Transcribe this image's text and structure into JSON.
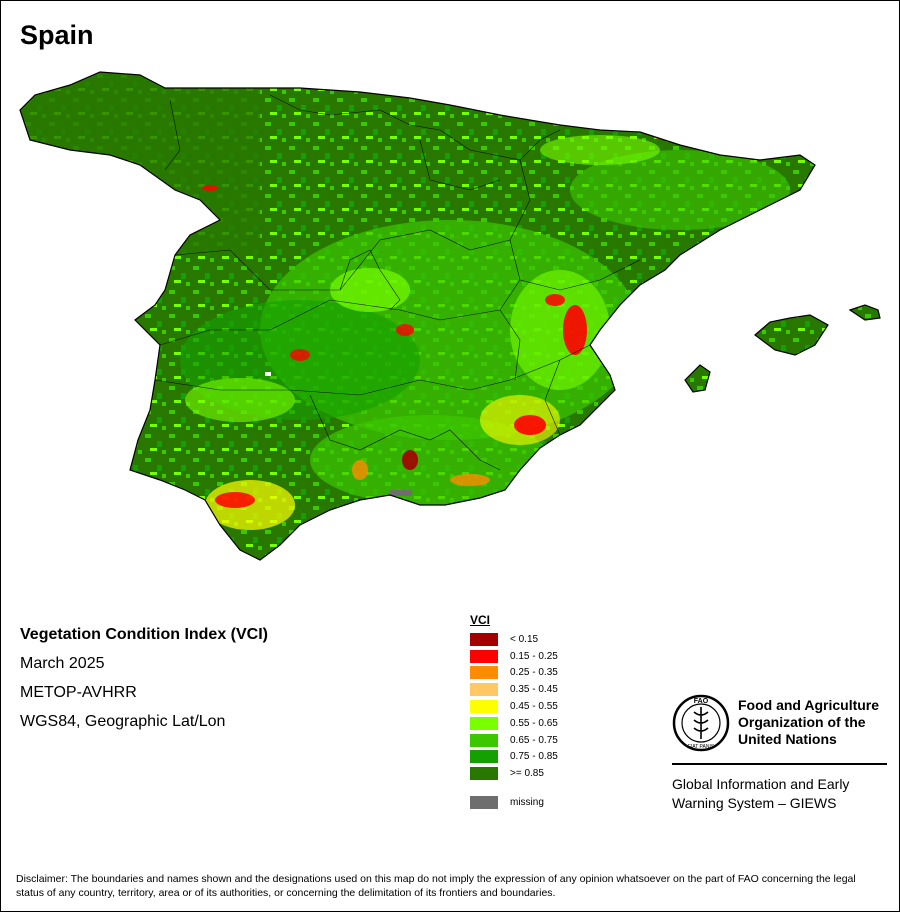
{
  "title": "Spain",
  "info": {
    "lines": [
      "Vegetation Condition Index (VCI)",
      "March 2025",
      "METOP-AVHRR",
      "WGS84, Geographic Lat/Lon"
    ]
  },
  "legend": {
    "title": "VCI",
    "classes": [
      {
        "label": "< 0.15",
        "color": "#a50000"
      },
      {
        "label": "0.15 - 0.25",
        "color": "#ff0000"
      },
      {
        "label": "0.25 - 0.35",
        "color": "#ff8c00"
      },
      {
        "label": "0.35 - 0.45",
        "color": "#ffc864"
      },
      {
        "label": "0.45 - 0.55",
        "color": "#ffff00"
      },
      {
        "label": "0.55 - 0.65",
        "color": "#78ff00"
      },
      {
        "label": "0.65 - 0.75",
        "color": "#3cc800"
      },
      {
        "label": "0.75 - 0.85",
        "color": "#14a000"
      },
      {
        "label": ">= 0.85",
        "color": "#287800"
      }
    ],
    "missing": {
      "label": "missing",
      "color": "#6e6e6e"
    }
  },
  "fao": {
    "name_lines": [
      "Food and Agriculture",
      "Organization of the",
      "United Nations"
    ],
    "logo_text": "FAO",
    "motto": "FIAT PANIS"
  },
  "giews": {
    "lines": [
      "Global Information and Early",
      "Warning System – GIEWS"
    ]
  },
  "disclaimer": "Disclaimer: The boundaries and names shown and the designations used on this map do not imply the expression of any opinion whatsoever on the part of FAO concerning the legal status of any country, territory, area or of its authorities, or concerning the delimitation of its frontiers and boundaries."
}
